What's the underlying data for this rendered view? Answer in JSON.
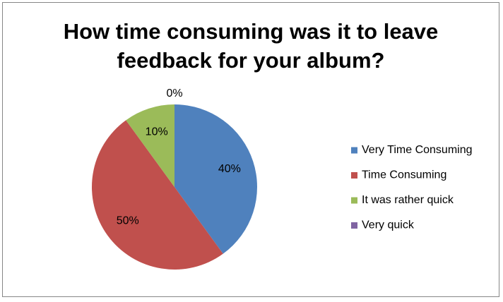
{
  "chart_data": {
    "type": "pie",
    "title": [
      "How time consuming was it to leave",
      "feedback for your album?"
    ],
    "categories": [
      "Very Time Consuming",
      "Time Consuming",
      "It was rather quick",
      "Very quick"
    ],
    "values": [
      40,
      50,
      10,
      0
    ],
    "value_labels": [
      "40%",
      "50%",
      "10%",
      "0%"
    ],
    "colors": [
      "#4F81BD",
      "#C0504D",
      "#9BBB59",
      "#8064A2"
    ],
    "legend": "right"
  }
}
